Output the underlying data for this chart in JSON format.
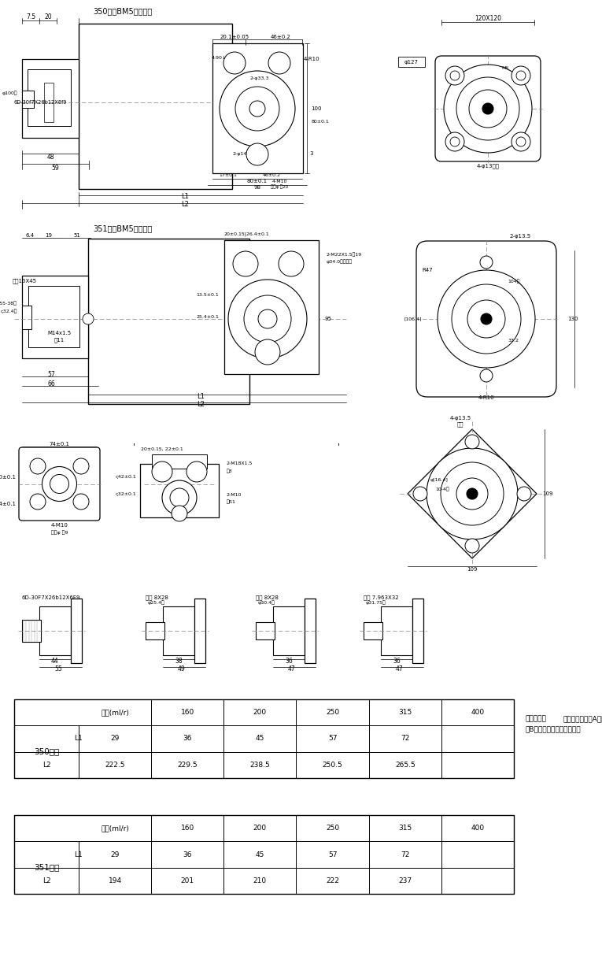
{
  "title_350": "350系列BM5擺線馬達",
  "title_351": "351系列BM5擺線馬達",
  "bg_color": "#ffffff",
  "table_350": {
    "header": [
      "排量(ml/r)",
      "160",
      "200",
      "250",
      "315",
      "400"
    ],
    "row_label": "350系列",
    "rows": [
      [
        "L1",
        "29",
        "36",
        "45",
        "57",
        "72"
      ],
      [
        "L2",
        "222.5",
        "229.5",
        "238.5",
        "250.5",
        "265.5"
      ]
    ]
  },
  "table_351": {
    "header": [
      "排量(ml/r)",
      "160",
      "200",
      "250",
      "315",
      "400"
    ],
    "row_label": "351系列",
    "rows": [
      [
        "L1",
        "29",
        "36",
        "45",
        "57",
        "72"
      ],
      [
        "L2",
        "194",
        "201",
        "210",
        "222",
        "237"
      ]
    ]
  },
  "note_bold": "標準旋向：",
  "note_text": "面對輸出軸，當A口進油B口回油，馬達順時針旋轉"
}
